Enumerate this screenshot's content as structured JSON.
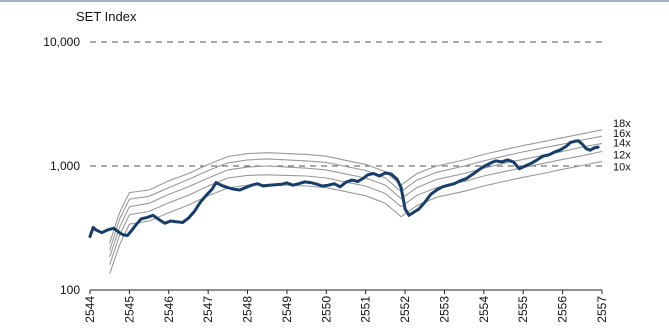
{
  "chart_data": {
    "type": "line",
    "title": "SET Index",
    "xlabel": "",
    "ylabel": "",
    "yscale": "log",
    "ylim": [
      100,
      10000
    ],
    "y_ticks": [
      {
        "value": 100,
        "label": "100"
      },
      {
        "value": 1000,
        "label": "1,000"
      },
      {
        "value": 10000,
        "label": "10,000"
      }
    ],
    "xlim": [
      2544,
      2557
    ],
    "x_ticks": [
      "2544",
      "2545",
      "2546",
      "2547",
      "2548",
      "2549",
      "2550",
      "2551",
      "2552",
      "2553",
      "2554",
      "2555",
      "2556",
      "2557"
    ],
    "gridlines_dashed_at": [
      1000,
      10000
    ],
    "colors": {
      "index": "#163d6b",
      "bands": "#999999",
      "grid": "#555555"
    },
    "series": [
      {
        "role": "index",
        "x": [
          2544.0,
          2544.08,
          2544.15,
          2544.3,
          2544.45,
          2544.6,
          2544.75,
          2544.85,
          2544.95,
          2545.05,
          2545.15,
          2545.3,
          2545.45,
          2545.6,
          2545.75,
          2545.9,
          2546.05,
          2546.2,
          2546.35,
          2546.5,
          2546.65,
          2546.8,
          2546.95,
          2547.1,
          2547.2,
          2547.35,
          2547.5,
          2547.65,
          2547.8,
          2547.95,
          2548.1,
          2548.25,
          2548.4,
          2548.55,
          2548.7,
          2548.85,
          2549.0,
          2549.15,
          2549.3,
          2549.45,
          2549.6,
          2549.75,
          2549.9,
          2550.05,
          2550.2,
          2550.35,
          2550.5,
          2550.65,
          2550.8,
          2550.95,
          2551.05,
          2551.2,
          2551.35,
          2551.5,
          2551.65,
          2551.8,
          2551.9,
          2552.0,
          2552.1,
          2552.2,
          2552.35,
          2552.5,
          2552.65,
          2552.8,
          2552.95,
          2553.1,
          2553.25,
          2553.4,
          2553.55,
          2553.7,
          2553.85,
          2554.0,
          2554.15,
          2554.3,
          2554.45,
          2554.6,
          2554.75,
          2554.9,
          2555.05,
          2555.2,
          2555.35,
          2555.5,
          2555.65,
          2555.8,
          2555.95,
          2556.1,
          2556.2,
          2556.3,
          2556.4,
          2556.5,
          2556.6,
          2556.7,
          2556.8,
          2556.9
        ],
        "values": [
          270,
          320,
          305,
          290,
          305,
          315,
          290,
          278,
          275,
          300,
          330,
          375,
          385,
          400,
          370,
          345,
          360,
          355,
          350,
          380,
          430,
          510,
          580,
          650,
          735,
          695,
          670,
          650,
          640,
          670,
          700,
          720,
          690,
          700,
          705,
          710,
          730,
          700,
          720,
          745,
          735,
          715,
          690,
          700,
          720,
          680,
          740,
          770,
          750,
          800,
          850,
          870,
          830,
          880,
          860,
          780,
          670,
          450,
          400,
          420,
          450,
          510,
          590,
          640,
          680,
          700,
          720,
          760,
          790,
          850,
          920,
          990,
          1050,
          1100,
          1080,
          1120,
          1080,
          950,
          1000,
          1050,
          1120,
          1200,
          1230,
          1300,
          1350,
          1450,
          1550,
          1580,
          1600,
          1500,
          1380,
          1340,
          1400,
          1420
        ]
      },
      {
        "name": "18x",
        "x": [
          2544.5,
          2544.75,
          2545.0,
          2545.5,
          2546.0,
          2546.5,
          2547.0,
          2547.5,
          2548.0,
          2548.5,
          2549.0,
          2549.5,
          2550.0,
          2550.5,
          2551.0,
          2551.5,
          2551.9,
          2552.3,
          2552.8,
          2553.5,
          2554.0,
          2554.5,
          2555.0,
          2555.5,
          2556.0,
          2556.5,
          2557.0
        ],
        "values": [
          240,
          420,
          610,
          640,
          760,
          870,
          1030,
          1190,
          1260,
          1280,
          1260,
          1240,
          1200,
          1110,
          1030,
          900,
          700,
          870,
          1000,
          1120,
          1240,
          1350,
          1460,
          1570,
          1690,
          1820,
          1960
        ]
      },
      {
        "name": "16x",
        "x": [
          2544.5,
          2544.75,
          2545.0,
          2545.5,
          2546.0,
          2546.5,
          2547.0,
          2547.5,
          2548.0,
          2548.5,
          2549.0,
          2549.5,
          2550.0,
          2550.5,
          2551.0,
          2551.5,
          2551.9,
          2552.3,
          2552.8,
          2553.5,
          2554.0,
          2554.5,
          2555.0,
          2555.5,
          2556.0,
          2556.5,
          2557.0
        ],
        "values": [
          210,
          370,
          540,
          570,
          670,
          780,
          920,
          1060,
          1120,
          1140,
          1120,
          1100,
          1070,
          990,
          920,
          800,
          620,
          770,
          890,
          1000,
          1100,
          1200,
          1300,
          1400,
          1500,
          1620,
          1740
        ]
      },
      {
        "name": "14x",
        "x": [
          2544.5,
          2544.75,
          2545.0,
          2545.5,
          2546.0,
          2546.5,
          2547.0,
          2547.5,
          2548.0,
          2548.5,
          2549.0,
          2549.5,
          2550.0,
          2550.5,
          2551.0,
          2551.5,
          2551.9,
          2552.3,
          2552.8,
          2553.5,
          2554.0,
          2554.5,
          2555.0,
          2555.5,
          2556.0,
          2556.5,
          2557.0
        ],
        "values": [
          185,
          320,
          470,
          500,
          590,
          680,
          800,
          930,
          980,
          1000,
          980,
          960,
          930,
          860,
          800,
          700,
          545,
          670,
          780,
          870,
          960,
          1050,
          1130,
          1220,
          1310,
          1420,
          1520
        ]
      },
      {
        "name": "12x",
        "x": [
          2544.5,
          2544.75,
          2545.0,
          2545.5,
          2546.0,
          2546.5,
          2547.0,
          2547.5,
          2548.0,
          2548.5,
          2549.0,
          2549.5,
          2550.0,
          2550.5,
          2551.0,
          2551.5,
          2551.9,
          2552.3,
          2552.8,
          2553.5,
          2554.0,
          2554.5,
          2555.0,
          2555.5,
          2556.0,
          2556.5,
          2557.0
        ],
        "values": [
          160,
          275,
          405,
          430,
          505,
          580,
          690,
          800,
          840,
          850,
          840,
          830,
          800,
          740,
          690,
          600,
          470,
          580,
          670,
          750,
          830,
          900,
          970,
          1050,
          1130,
          1210,
          1310
        ]
      },
      {
        "name": "10x",
        "x": [
          2544.5,
          2544.75,
          2545.0,
          2545.5,
          2546.0,
          2546.5,
          2547.0,
          2547.5,
          2548.0,
          2548.5,
          2549.0,
          2549.5,
          2550.0,
          2550.5,
          2551.0,
          2551.5,
          2551.9,
          2552.3,
          2552.8,
          2553.5,
          2554.0,
          2554.5,
          2555.0,
          2555.5,
          2556.0,
          2556.5,
          2557.0
        ],
        "values": [
          135,
          230,
          340,
          360,
          420,
          485,
          575,
          665,
          700,
          710,
          700,
          690,
          670,
          620,
          575,
          500,
          390,
          480,
          560,
          625,
          690,
          750,
          810,
          870,
          940,
          1010,
          1090
        ]
      }
    ]
  }
}
